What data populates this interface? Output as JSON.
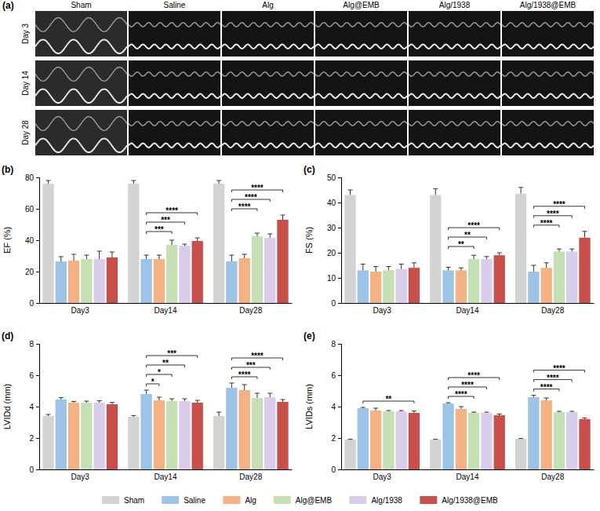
{
  "panel_a": {
    "label": "(a)",
    "columns": [
      "Sham",
      "Saline",
      "Alg",
      "Alg@EMB",
      "Alg/1938",
      "Alg/1938@EMB"
    ],
    "rows": [
      "Day 3",
      "Day 14",
      "Day 28"
    ]
  },
  "chart_data": [
    {
      "type": "bar",
      "title": "(b)",
      "y_label": "EF (%)",
      "legend": "bottom",
      "categories": [
        "Day3",
        "Day14",
        "Day28"
      ],
      "ylim": [
        0,
        80
      ],
      "yticks": [
        0,
        20,
        40,
        60,
        80
      ],
      "series": [
        {
          "name": "Sham",
          "color": "#d3d3d3",
          "values": [
            76,
            76,
            76
          ],
          "errors": [
            2,
            2,
            2
          ]
        },
        {
          "name": "Saline",
          "color": "#9dc3e6",
          "values": [
            26.5,
            28,
            26.5
          ],
          "errors": [
            3,
            2.5,
            4
          ]
        },
        {
          "name": "Alg",
          "color": "#f4b183",
          "values": [
            27,
            28,
            28.5
          ],
          "errors": [
            4,
            2.5,
            2.5
          ]
        },
        {
          "name": "Alg@EMB",
          "color": "#c5e0b4",
          "values": [
            28,
            37,
            42.5
          ],
          "errors": [
            2.5,
            3,
            2
          ]
        },
        {
          "name": "Alg/1938",
          "color": "#d9cdea",
          "values": [
            28,
            36.5,
            41.5
          ],
          "errors": [
            5,
            1,
            2.5
          ]
        },
        {
          "name": "Alg/1938@EMB",
          "color": "#c9504a",
          "values": [
            29,
            39.5,
            53
          ],
          "errors": [
            3.5,
            2,
            3
          ]
        }
      ],
      "annotations": [
        {
          "category": 1,
          "from": 1,
          "to": 3,
          "label": "***"
        },
        {
          "category": 1,
          "from": 1,
          "to": 4,
          "label": "***"
        },
        {
          "category": 1,
          "from": 1,
          "to": 5,
          "label": "****"
        },
        {
          "category": 2,
          "from": 1,
          "to": 3,
          "label": "****"
        },
        {
          "category": 2,
          "from": 1,
          "to": 4,
          "label": "****"
        },
        {
          "category": 2,
          "from": 1,
          "to": 5,
          "label": "****"
        }
      ]
    },
    {
      "type": "bar",
      "title": "(c)",
      "y_label": "FS (%)",
      "categories": [
        "Day3",
        "Day14",
        "Day28"
      ],
      "ylim": [
        0,
        50
      ],
      "yticks": [
        0,
        10,
        20,
        30,
        40,
        50
      ],
      "series": [
        {
          "name": "Sham",
          "color": "#d3d3d3",
          "values": [
            43,
            43,
            43.5
          ],
          "errors": [
            2,
            2.5,
            2.5
          ]
        },
        {
          "name": "Saline",
          "color": "#9dc3e6",
          "values": [
            13,
            13,
            12.5
          ],
          "errors": [
            2.5,
            1.2,
            2.5
          ]
        },
        {
          "name": "Alg",
          "color": "#f4b183",
          "values": [
            12.5,
            13,
            14
          ],
          "errors": [
            2,
            1,
            2
          ]
        },
        {
          "name": "Alg@EMB",
          "color": "#c5e0b4",
          "values": [
            13,
            17.5,
            20.5
          ],
          "errors": [
            1.5,
            1.5,
            1
          ]
        },
        {
          "name": "Alg/1938",
          "color": "#d9cdea",
          "values": [
            13.5,
            17.5,
            20.5
          ],
          "errors": [
            2,
            1,
            1
          ]
        },
        {
          "name": "Alg/1938@EMB",
          "color": "#c9504a",
          "values": [
            14,
            19,
            26
          ],
          "errors": [
            2,
            1,
            2.5
          ]
        }
      ],
      "annotations": [
        {
          "category": 1,
          "from": 1,
          "to": 3,
          "label": "**"
        },
        {
          "category": 1,
          "from": 1,
          "to": 4,
          "label": "**"
        },
        {
          "category": 1,
          "from": 1,
          "to": 5,
          "label": "****"
        },
        {
          "category": 2,
          "from": 1,
          "to": 3,
          "label": "****"
        },
        {
          "category": 2,
          "from": 1,
          "to": 4,
          "label": "****"
        },
        {
          "category": 2,
          "from": 1,
          "to": 5,
          "label": "****"
        }
      ]
    },
    {
      "type": "bar",
      "title": "(d)",
      "y_label": "LVIDd (mm)",
      "categories": [
        "Day3",
        "Day14",
        "Day28"
      ],
      "ylim": [
        0,
        8
      ],
      "yticks": [
        0,
        2,
        4,
        6,
        8
      ],
      "series": [
        {
          "name": "Sham",
          "color": "#d3d3d3",
          "values": [
            3.4,
            3.35,
            3.4
          ],
          "errors": [
            0.1,
            0.08,
            0.25
          ]
        },
        {
          "name": "Saline",
          "color": "#9dc3e6",
          "values": [
            4.45,
            4.8,
            5.2
          ],
          "errors": [
            0.12,
            0.25,
            0.3
          ]
        },
        {
          "name": "Alg",
          "color": "#f4b183",
          "values": [
            4.25,
            4.4,
            5.05
          ],
          "errors": [
            0.08,
            0.2,
            0.35
          ]
        },
        {
          "name": "Alg@EMB",
          "color": "#c5e0b4",
          "values": [
            4.25,
            4.35,
            4.55
          ],
          "errors": [
            0.1,
            0.15,
            0.3
          ]
        },
        {
          "name": "Alg/1938",
          "color": "#d9cdea",
          "values": [
            4.25,
            4.35,
            4.6
          ],
          "errors": [
            0.12,
            0.15,
            0.25
          ]
        },
        {
          "name": "Alg/1938@EMB",
          "color": "#c9504a",
          "values": [
            4.15,
            4.25,
            4.3
          ],
          "errors": [
            0.12,
            0.15,
            0.15
          ]
        }
      ],
      "annotations": [
        {
          "category": 1,
          "from": 1,
          "to": 2,
          "label": "*"
        },
        {
          "category": 1,
          "from": 1,
          "to": 3,
          "label": "*"
        },
        {
          "category": 1,
          "from": 1,
          "to": 4,
          "label": "**"
        },
        {
          "category": 1,
          "from": 1,
          "to": 5,
          "label": "***"
        },
        {
          "category": 2,
          "from": 1,
          "to": 3,
          "label": "****"
        },
        {
          "category": 2,
          "from": 1,
          "to": 4,
          "label": "***"
        },
        {
          "category": 2,
          "from": 1,
          "to": 5,
          "label": "****"
        }
      ]
    },
    {
      "type": "bar",
      "title": "(e)",
      "y_label": "LVIDs (mm)",
      "categories": [
        "Day3",
        "Day14",
        "Day28"
      ],
      "ylim": [
        0,
        8
      ],
      "yticks": [
        0,
        2,
        4,
        6,
        8
      ],
      "series": [
        {
          "name": "Sham",
          "color": "#d3d3d3",
          "values": [
            1.9,
            1.9,
            1.95
          ],
          "errors": [
            0.02,
            0.02,
            0.02
          ]
        },
        {
          "name": "Saline",
          "color": "#9dc3e6",
          "values": [
            3.9,
            4.2,
            4.6
          ],
          "errors": [
            0.05,
            0.05,
            0.12
          ]
        },
        {
          "name": "Alg",
          "color": "#f4b183",
          "values": [
            3.75,
            3.85,
            4.4
          ],
          "errors": [
            0.15,
            0.15,
            0.15
          ]
        },
        {
          "name": "Alg@EMB",
          "color": "#c5e0b4",
          "values": [
            3.7,
            3.6,
            3.65
          ],
          "errors": [
            0.05,
            0.05,
            0.05
          ]
        },
        {
          "name": "Alg/1938",
          "color": "#d9cdea",
          "values": [
            3.7,
            3.6,
            3.65
          ],
          "errors": [
            0.05,
            0.05,
            0.05
          ]
        },
        {
          "name": "Alg/1938@EMB",
          "color": "#c9504a",
          "values": [
            3.6,
            3.45,
            3.2
          ],
          "errors": [
            0.12,
            0.08,
            0.08
          ]
        }
      ],
      "annotations": [
        {
          "category": 0,
          "from": 1,
          "to": 5,
          "label": "**"
        },
        {
          "category": 1,
          "from": 1,
          "to": 3,
          "label": "****"
        },
        {
          "category": 1,
          "from": 1,
          "to": 4,
          "label": "****"
        },
        {
          "category": 1,
          "from": 1,
          "to": 5,
          "label": "****"
        },
        {
          "category": 2,
          "from": 1,
          "to": 3,
          "label": "****"
        },
        {
          "category": 2,
          "from": 1,
          "to": 4,
          "label": "****"
        },
        {
          "category": 2,
          "from": 1,
          "to": 5,
          "label": "****"
        }
      ]
    }
  ]
}
